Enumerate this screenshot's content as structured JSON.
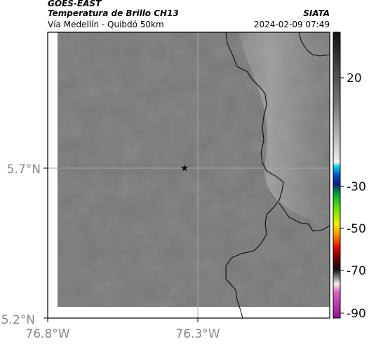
{
  "header": {
    "satellite": "GOES-EAST",
    "product": "Temperatura de Brillo CH13",
    "region": "Vía Medellín - Quibdó 50km",
    "source": "SIATA",
    "datetime": "2024-02-09 07:49"
  },
  "map": {
    "lat_ticks": [
      "5.7°N",
      "5.2°N"
    ],
    "lon_ticks": [
      "76.8°W",
      "76.3°W"
    ],
    "marker_icon": "star-icon",
    "marker_color": "#000000",
    "land_color": "#7b7b7b",
    "border_color": "#000000"
  },
  "colorbar": {
    "ticks": [
      "20",
      "-30",
      "-50",
      "-70",
      "-90"
    ]
  }
}
